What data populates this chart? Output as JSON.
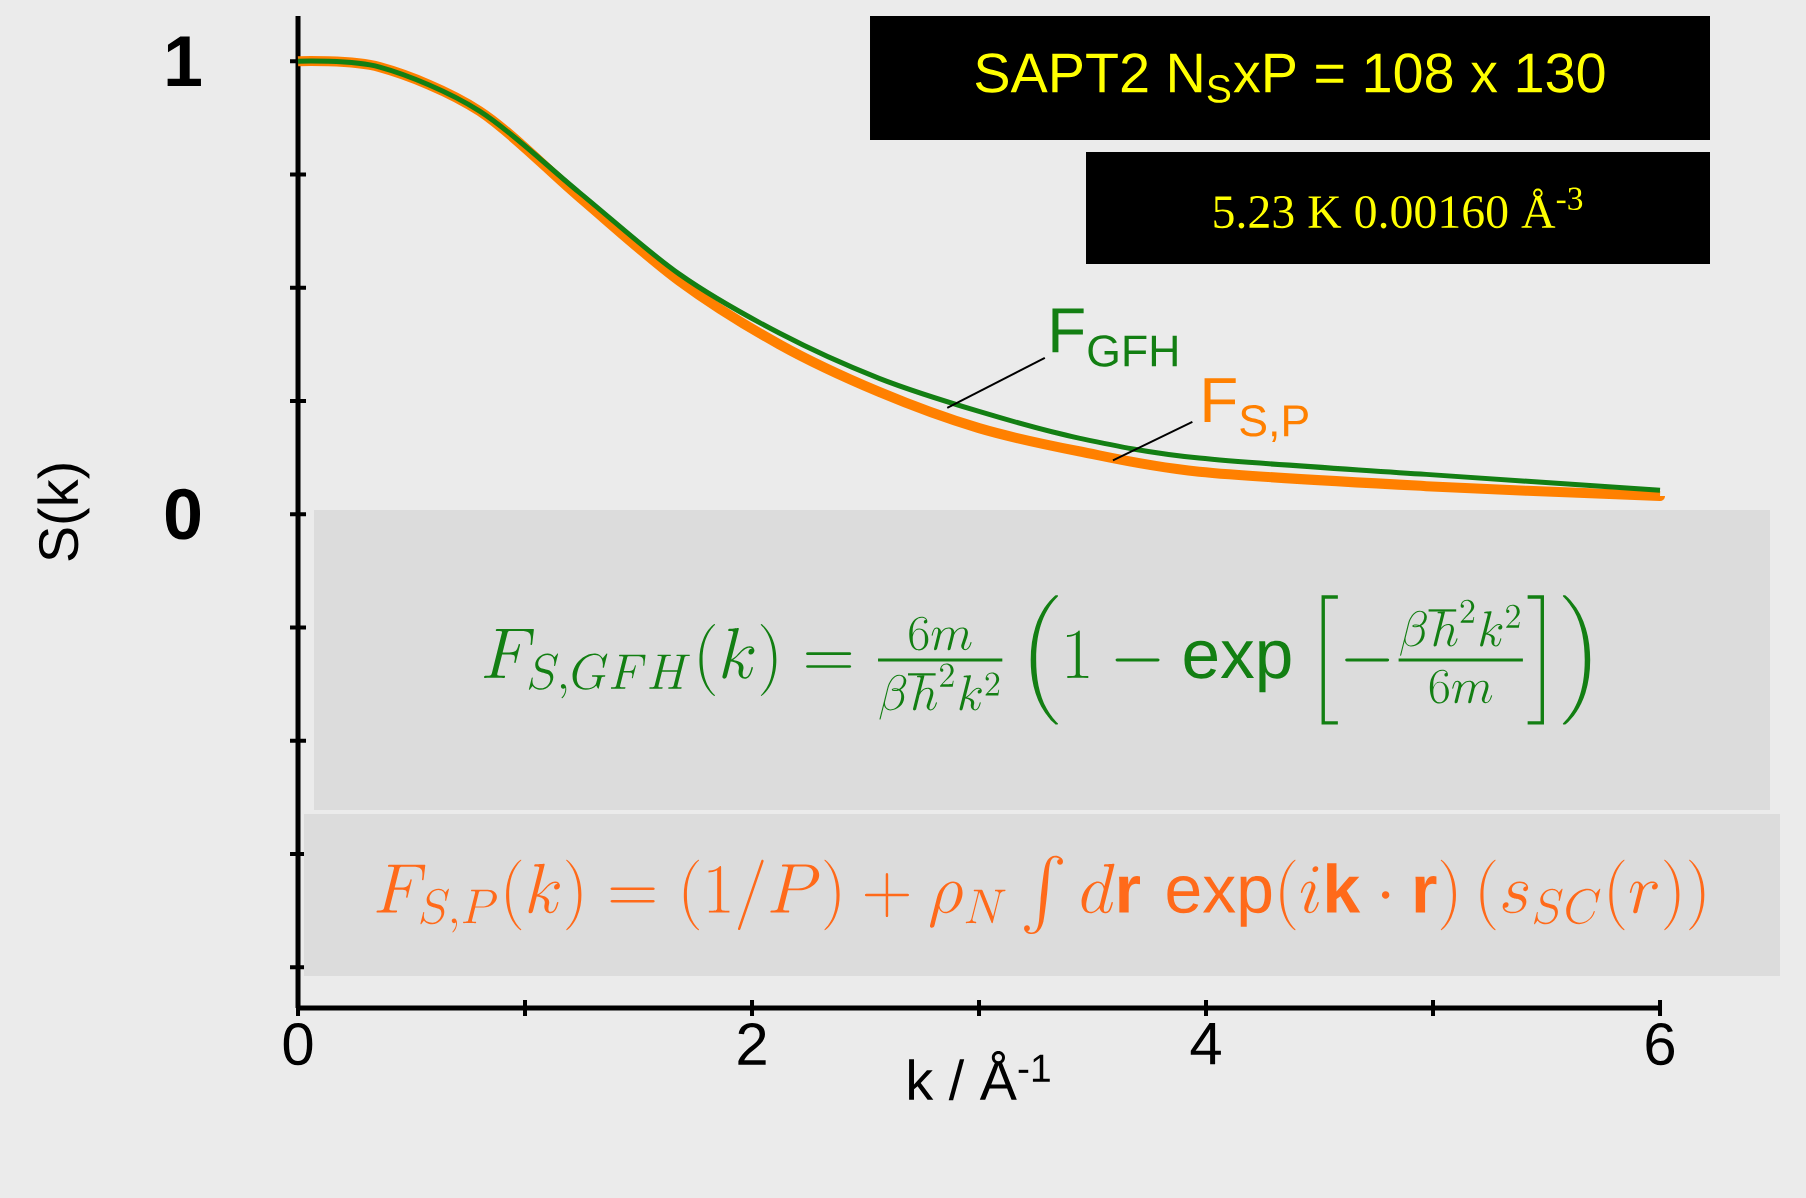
{
  "chart_data": {
    "type": "line",
    "xlabel": "k / Å$^{-1}$",
    "ylabel": "S(k)",
    "x": [
      0,
      0.36,
      0.8,
      1.24,
      1.68,
      2.12,
      2.56,
      3.0,
      3.44,
      3.97,
      4.97,
      6.0
    ],
    "series": [
      {
        "name": "F$_{GFH}$",
        "color": "#137f13",
        "values": [
          1,
          0.987,
          0.89,
          0.71,
          0.53,
          0.4,
          0.3,
          0.227,
          0.168,
          0.124,
          0.088,
          0.053
        ]
      },
      {
        "name": "F$_{S,P}$",
        "color": "#ff8000",
        "values": [
          1,
          0.987,
          0.89,
          0.7,
          0.515,
          0.375,
          0.27,
          0.19,
          0.139,
          0.094,
          0.062,
          0.04
        ]
      }
    ],
    "xlim": [
      0,
      6
    ],
    "ylim": [
      -1.09,
      1.1
    ],
    "xticks": [
      0,
      {
        "value": 1,
        "label": null
      },
      2,
      {
        "value": 3,
        "label": null
      },
      4,
      {
        "value": 5,
        "label": null
      },
      6
    ],
    "yticks": [
      {
        "value": -1,
        "label": null
      },
      {
        "value": -0.75,
        "label": null
      },
      {
        "value": -0.5,
        "label": null
      },
      {
        "value": -0.25,
        "label": null
      },
      0,
      {
        "value": 0.25,
        "label": null
      },
      {
        "value": 0.5,
        "label": null
      },
      {
        "value": 0.75,
        "label": null
      },
      1
    ],
    "annotations": [
      "SAPT2  N$_{S}$xP = 108 x 130",
      "5.23 K   0.00160 Å$^{-3}$",
      "F_{S,GFH}(k) = \\frac{6m}{\\beta\\hbar^2k^2}\\left(1-\\exp\\left[-\\frac{\\beta\\hbar^2k^2}{6m}\\right]\\right)",
      "F_{S,P}(k)=(1/P)+\\rho_N\\int d\\mathbf{r}\\,\\exp(i\\mathbf{k}\\cdot\\mathbf{r})\\,(s_{SC}(r))"
    ]
  }
}
